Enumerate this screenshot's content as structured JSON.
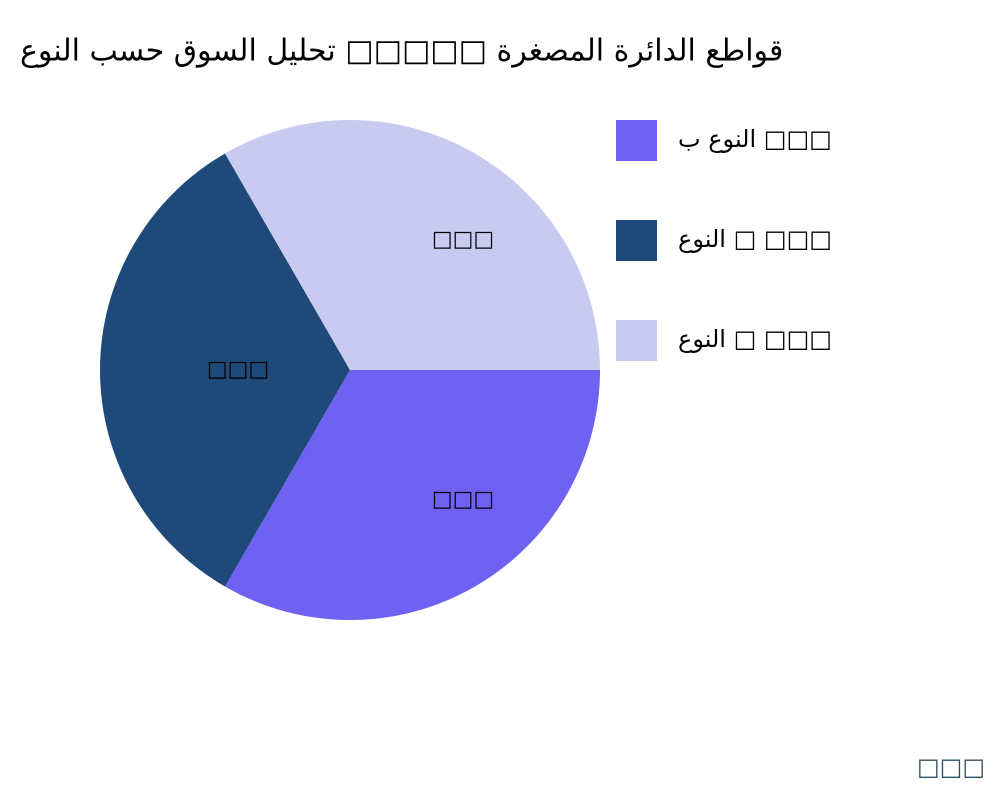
{
  "chart_data": {
    "type": "pie",
    "title": "قواطع الدائرة المصغرة □□□□□ تحليل السوق حسب النوع",
    "categories": [
      "النوع ب □□□",
      "النوع □ □□□",
      "النوع □ □□□"
    ],
    "values": [
      33.3,
      33.3,
      33.3
    ],
    "value_labels": [
      "□□□",
      "□□□",
      "□□□"
    ],
    "colors": [
      "#6f61f2",
      "#1f4978",
      "#c9caf0"
    ],
    "legend": "upper right",
    "footer": "□□□"
  }
}
